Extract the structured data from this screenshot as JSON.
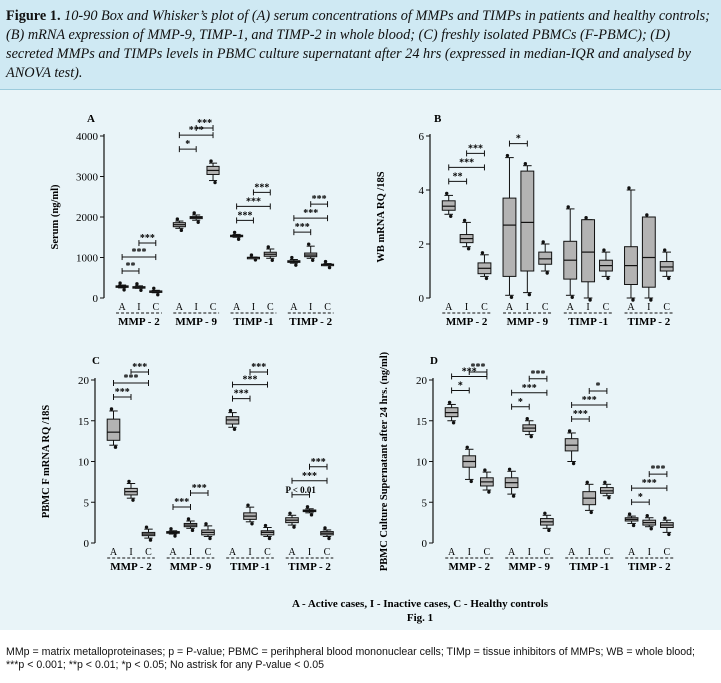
{
  "caption": {
    "label": "Figure 1.",
    "text": "10-90 Box and Whisker’s plot of (A) serum concentrations of MMPs and TIMPs in patients and healthy controls; (B) mRNA expression of MMP-9, TIMP-1, and TIMP-2 in whole blood; (C) freshly isolated PBMCs (F-PBMC); (D) secreted MMPs and TIMPs levels in PBMC culture supernatant after 24 hrs (expressed in median-IQR and analysed by ANOVA test)."
  },
  "figure": {
    "legend": "A - Active cases, I - Inactive cases, C - Healthy controls",
    "fig_label": "Fig. 1"
  },
  "footnote": {
    "line1": "MMp = matrix metalloproteinases; p = P-value; PBMC = perihpheral blood mononuclear cells; TIMp = tissue inhibitors of MMPs; WB = whole blood;",
    "line2": "***p < 0.001; **p < 0.01; *p < 0.05; No astrisk for any P-value < 0.05"
  },
  "colors": {
    "caption_bg": "#cfe9f3",
    "figure_bg": "#e9f4f8",
    "box_fill": "#b3b3b3"
  },
  "chart_data": [
    {
      "panel": "A",
      "type": "box",
      "ylabel": "Serum (ng/ml)",
      "ylim": [
        0,
        4000
      ],
      "yticks": [
        "0",
        "1000",
        "2000",
        "3000",
        "4000"
      ],
      "group_letters": [
        "A",
        "I",
        "C"
      ],
      "groups": [
        {
          "name": "MMP - 2",
          "boxes": [
            {
              "lo": 250,
              "q1": 270,
              "med": 285,
              "q3": 300,
              "hi": 320
            },
            {
              "lo": 240,
              "q1": 255,
              "med": 265,
              "q3": 280,
              "hi": 300
            },
            {
              "lo": 130,
              "q1": 150,
              "med": 165,
              "q3": 175,
              "hi": 190
            }
          ],
          "sig": [
            {
              "a": 0,
              "b": 1,
              "label": "**"
            },
            {
              "a": 0,
              "b": 2,
              "label": "***"
            },
            {
              "a": 1,
              "b": 2,
              "label": "***"
            }
          ]
        },
        {
          "name": "MMP - 9",
          "boxes": [
            {
              "lo": 1720,
              "q1": 1760,
              "med": 1810,
              "q3": 1860,
              "hi": 1900
            },
            {
              "lo": 1920,
              "q1": 1960,
              "med": 1990,
              "q3": 2010,
              "hi": 2050
            },
            {
              "lo": 2900,
              "q1": 3050,
              "med": 3150,
              "q3": 3250,
              "hi": 3330
            }
          ],
          "sig": [
            {
              "a": 0,
              "b": 1,
              "label": "*"
            },
            {
              "a": 0,
              "b": 2,
              "label": "***"
            },
            {
              "a": 1,
              "b": 2,
              "label": "***"
            }
          ]
        },
        {
          "name": "TIMP -1",
          "boxes": [
            {
              "lo": 1500,
              "q1": 1520,
              "med": 1535,
              "q3": 1550,
              "hi": 1570
            },
            {
              "lo": 990,
              "q1": 995,
              "med": 1000,
              "q3": 1005,
              "hi": 1010
            },
            {
              "lo": 980,
              "q1": 1030,
              "med": 1080,
              "q3": 1130,
              "hi": 1210
            }
          ],
          "sig": [
            {
              "a": 0,
              "b": 1,
              "label": "***"
            },
            {
              "a": 0,
              "b": 2,
              "label": "***"
            },
            {
              "a": 1,
              "b": 2,
              "label": "***"
            }
          ]
        },
        {
          "name": "TIMP - 2",
          "boxes": [
            {
              "lo": 860,
              "q1": 880,
              "med": 900,
              "q3": 920,
              "hi": 950
            },
            {
              "lo": 980,
              "q1": 1020,
              "med": 1060,
              "q3": 1110,
              "hi": 1280
            },
            {
              "lo": 800,
              "q1": 815,
              "med": 825,
              "q3": 835,
              "hi": 850
            }
          ],
          "sig": [
            {
              "a": 0,
              "b": 1,
              "label": "***"
            },
            {
              "a": 0,
              "b": 2,
              "label": "***"
            },
            {
              "a": 1,
              "b": 2,
              "label": "***"
            }
          ]
        }
      ]
    },
    {
      "panel": "B",
      "type": "box",
      "ylabel": "WB mRNA RQ /18S",
      "ylim": [
        0,
        6
      ],
      "yticks": [
        "0",
        "2",
        "4",
        "6"
      ],
      "group_letters": [
        "A",
        "I",
        "C"
      ],
      "groups": [
        {
          "name": "MMP - 2",
          "boxes": [
            {
              "lo": 3.1,
              "q1": 3.25,
              "med": 3.4,
              "q3": 3.6,
              "hi": 3.8
            },
            {
              "lo": 1.9,
              "q1": 2.05,
              "med": 2.2,
              "q3": 2.35,
              "hi": 2.8
            },
            {
              "lo": 0.8,
              "q1": 0.9,
              "med": 1.1,
              "q3": 1.3,
              "hi": 1.6
            }
          ],
          "sig": [
            {
              "a": 0,
              "b": 1,
              "label": "**"
            },
            {
              "a": 0,
              "b": 2,
              "label": "***"
            },
            {
              "a": 1,
              "b": 2,
              "label": "***"
            }
          ]
        },
        {
          "name": "MMP - 9",
          "boxes": [
            {
              "lo": 0.1,
              "q1": 0.8,
              "med": 2.7,
              "q3": 3.7,
              "hi": 5.2
            },
            {
              "lo": 0.2,
              "q1": 1.0,
              "med": 2.8,
              "q3": 4.7,
              "hi": 4.9
            },
            {
              "lo": 1.0,
              "q1": 1.25,
              "med": 1.45,
              "q3": 1.7,
              "hi": 2.0
            }
          ],
          "sig": [
            {
              "a": 0,
              "b": 1,
              "label": "*"
            }
          ]
        },
        {
          "name": "TIMP -1",
          "boxes": [
            {
              "lo": 0.1,
              "q1": 0.7,
              "med": 1.4,
              "q3": 2.1,
              "hi": 3.3
            },
            {
              "lo": 0.0,
              "q1": 0.6,
              "med": 1.7,
              "q3": 2.9,
              "hi": 2.9
            },
            {
              "lo": 0.8,
              "q1": 1.0,
              "med": 1.2,
              "q3": 1.4,
              "hi": 1.7
            }
          ],
          "sig": []
        },
        {
          "name": "TIMP - 2",
          "boxes": [
            {
              "lo": 0.0,
              "q1": 0.5,
              "med": 1.2,
              "q3": 1.9,
              "hi": 4.0
            },
            {
              "lo": 0.0,
              "q1": 0.4,
              "med": 1.5,
              "q3": 3.0,
              "hi": 3.0
            },
            {
              "lo": 0.8,
              "q1": 1.0,
              "med": 1.15,
              "q3": 1.35,
              "hi": 1.7
            }
          ],
          "sig": []
        }
      ]
    },
    {
      "panel": "C",
      "type": "box",
      "ylabel": "PBMC F mRNA RQ /18S",
      "ylim": [
        0,
        20
      ],
      "yticks": [
        "0",
        "5",
        "10",
        "15",
        "20"
      ],
      "group_letters": [
        "A",
        "I",
        "C"
      ],
      "groups": [
        {
          "name": "MMP - 2",
          "boxes": [
            {
              "lo": 12,
              "q1": 12.6,
              "med": 13.6,
              "q3": 15.2,
              "hi": 16.2
            },
            {
              "lo": 5.5,
              "q1": 5.9,
              "med": 6.3,
              "q3": 6.7,
              "hi": 7.3
            },
            {
              "lo": 0.6,
              "q1": 0.9,
              "med": 1.1,
              "q3": 1.3,
              "hi": 1.7
            }
          ],
          "sig": [
            {
              "a": 0,
              "b": 1,
              "label": "***"
            },
            {
              "a": 0,
              "b": 2,
              "label": "***"
            },
            {
              "a": 1,
              "b": 2,
              "label": "***"
            }
          ]
        },
        {
          "name": "MMP - 9",
          "boxes": [
            {
              "lo": 1.1,
              "q1": 1.2,
              "med": 1.3,
              "q3": 1.4,
              "hi": 1.5
            },
            {
              "lo": 1.8,
              "q1": 2.0,
              "med": 2.2,
              "q3": 2.4,
              "hi": 2.7
            },
            {
              "lo": 0.8,
              "q1": 1.0,
              "med": 1.3,
              "q3": 1.6,
              "hi": 2.1
            }
          ],
          "sig": [
            {
              "a": 0,
              "b": 1,
              "label": "***"
            },
            {
              "a": 1,
              "b": 2,
              "label": "***"
            }
          ]
        },
        {
          "name": "TIMP -1",
          "boxes": [
            {
              "lo": 14.2,
              "q1": 14.6,
              "med": 15.1,
              "q3": 15.5,
              "hi": 16.0
            },
            {
              "lo": 2.6,
              "q1": 2.9,
              "med": 3.3,
              "q3": 3.7,
              "hi": 4.4
            },
            {
              "lo": 0.8,
              "q1": 1.0,
              "med": 1.3,
              "q3": 1.5,
              "hi": 1.9
            }
          ],
          "sig": [
            {
              "a": 0,
              "b": 1,
              "label": "***"
            },
            {
              "a": 0,
              "b": 2,
              "label": "***"
            },
            {
              "a": 1,
              "b": 2,
              "label": "***"
            }
          ]
        },
        {
          "name": "TIMP - 2",
          "boxes": [
            {
              "lo": 2.2,
              "q1": 2.5,
              "med": 2.8,
              "q3": 3.1,
              "hi": 3.4
            },
            {
              "lo": 3.7,
              "q1": 3.85,
              "med": 3.95,
              "q3": 4.05,
              "hi": 4.2
            },
            {
              "lo": 0.8,
              "q1": 1.0,
              "med": 1.2,
              "q3": 1.4,
              "hi": 1.6
            }
          ],
          "sig": [
            {
              "a": 0,
              "b": 1,
              "label": "P < 0.01"
            },
            {
              "a": 0,
              "b": 2,
              "label": "***"
            },
            {
              "a": 1,
              "b": 2,
              "label": "***"
            }
          ]
        }
      ]
    },
    {
      "panel": "D",
      "type": "box",
      "ylabel": "PBMC Culture Supernatant after 24 hrs. (ng/ml)",
      "ylim": [
        0,
        20
      ],
      "yticks": [
        "0",
        "5",
        "10",
        "15",
        "20"
      ],
      "group_letters": [
        "A",
        "I",
        "C"
      ],
      "groups": [
        {
          "name": "MMP - 2",
          "boxes": [
            {
              "lo": 15.0,
              "q1": 15.5,
              "med": 16.0,
              "q3": 16.6,
              "hi": 17.0
            },
            {
              "lo": 7.8,
              "q1": 9.3,
              "med": 10.0,
              "q3": 10.7,
              "hi": 11.5
            },
            {
              "lo": 6.5,
              "q1": 7.0,
              "med": 7.5,
              "q3": 8.0,
              "hi": 8.7
            }
          ],
          "sig": [
            {
              "a": 0,
              "b": 1,
              "label": "*"
            },
            {
              "a": 0,
              "b": 2,
              "label": "***"
            },
            {
              "a": 1,
              "b": 2,
              "label": "***"
            }
          ]
        },
        {
          "name": "MMP - 9",
          "boxes": [
            {
              "lo": 6.0,
              "q1": 6.8,
              "med": 7.4,
              "q3": 8.0,
              "hi": 8.8
            },
            {
              "lo": 13.3,
              "q1": 13.7,
              "med": 14.1,
              "q3": 14.5,
              "hi": 15.0
            },
            {
              "lo": 1.8,
              "q1": 2.2,
              "med": 2.6,
              "q3": 3.0,
              "hi": 3.4
            }
          ],
          "sig": [
            {
              "a": 0,
              "b": 1,
              "label": "*"
            },
            {
              "a": 0,
              "b": 2,
              "label": "***"
            },
            {
              "a": 1,
              "b": 2,
              "label": "***"
            }
          ]
        },
        {
          "name": "TIMP -1",
          "boxes": [
            {
              "lo": 10.0,
              "q1": 11.3,
              "med": 12.0,
              "q3": 12.8,
              "hi": 13.5
            },
            {
              "lo": 4.0,
              "q1": 4.7,
              "med": 5.5,
              "q3": 6.3,
              "hi": 7.2
            },
            {
              "lo": 5.8,
              "q1": 6.1,
              "med": 6.4,
              "q3": 6.8,
              "hi": 7.2
            }
          ],
          "sig": [
            {
              "a": 0,
              "b": 1,
              "label": "***"
            },
            {
              "a": 0,
              "b": 2,
              "label": "***"
            },
            {
              "a": 1,
              "b": 2,
              "label": "*"
            }
          ]
        },
        {
          "name": "TIMP - 2",
          "boxes": [
            {
              "lo": 2.4,
              "q1": 2.7,
              "med": 2.9,
              "q3": 3.1,
              "hi": 3.3
            },
            {
              "lo": 2.0,
              "q1": 2.2,
              "med": 2.5,
              "q3": 2.8,
              "hi": 3.1
            },
            {
              "lo": 1.3,
              "q1": 1.9,
              "med": 2.2,
              "q3": 2.5,
              "hi": 2.8
            }
          ],
          "sig": [
            {
              "a": 0,
              "b": 1,
              "label": "*"
            },
            {
              "a": 0,
              "b": 2,
              "label": "***"
            },
            {
              "a": 1,
              "b": 2,
              "label": "***"
            }
          ]
        }
      ]
    }
  ]
}
